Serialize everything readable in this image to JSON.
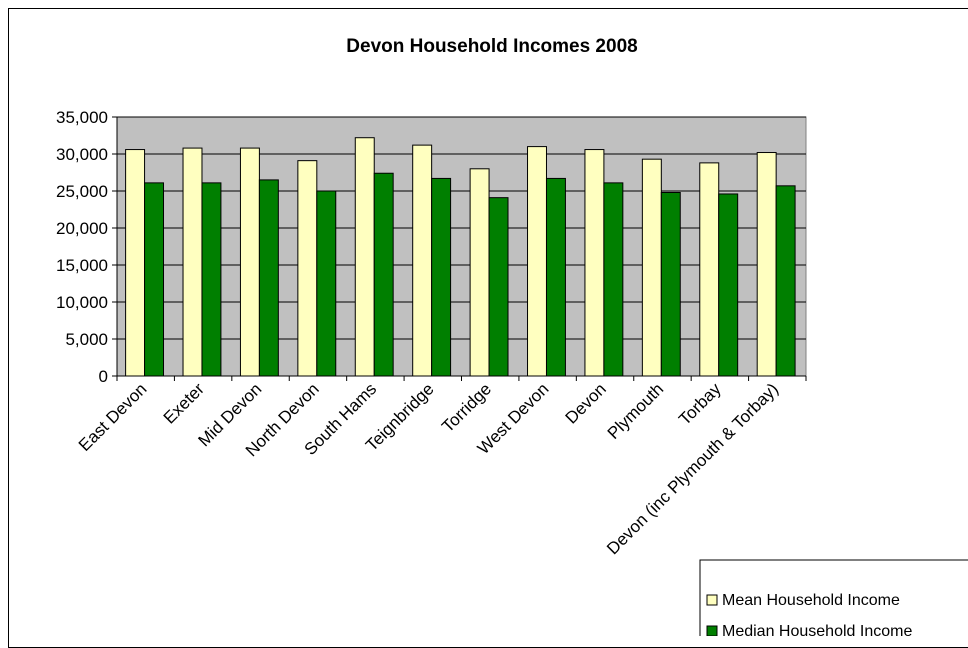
{
  "chart_data": {
    "type": "bar",
    "title": "Devon Household Incomes 2008",
    "xlabel": "",
    "ylabel": "",
    "ylim": [
      0,
      35000
    ],
    "yticks": [
      "0",
      "5,000",
      "10,000",
      "15,000",
      "20,000",
      "25,000",
      "30,000",
      "35,000"
    ],
    "grid": true,
    "legend": "bottom-right",
    "categories": [
      "East Devon",
      "Exeter",
      "Mid Devon",
      "North Devon",
      "South Hams",
      "Teignbridge",
      "Torridge",
      "West Devon",
      "Devon",
      "Plymouth",
      "Torbay",
      "Devon (inc Plymouth & Torbay)"
    ],
    "series": [
      {
        "name": "Mean Household Income",
        "color": "#ffffc0",
        "values": [
          30600,
          30800,
          30800,
          29100,
          32200,
          31200,
          28000,
          31000,
          30600,
          29300,
          28800,
          30200
        ]
      },
      {
        "name": "Median Household Income",
        "color": "#007f00",
        "values": [
          26100,
          26100,
          26500,
          25000,
          27400,
          26700,
          24100,
          26700,
          26100,
          24800,
          24600,
          25700
        ]
      }
    ],
    "plot_background": "#c0c0c0"
  }
}
